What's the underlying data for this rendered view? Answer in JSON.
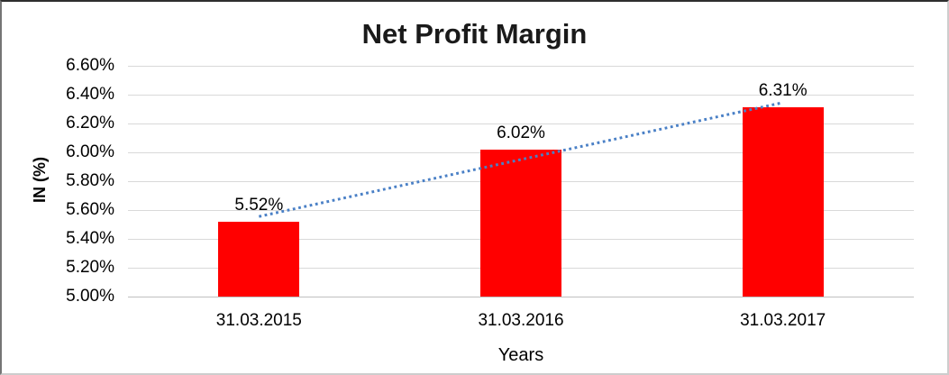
{
  "chart_data": {
    "type": "bar",
    "title": "Net Profit Margin",
    "xlabel": "Years",
    "ylabel": "IN (%)",
    "categories": [
      "31.03.2015",
      "31.03.2016",
      "31.03.2017"
    ],
    "values": [
      5.52,
      6.02,
      6.31
    ],
    "data_labels": [
      "5.52%",
      "6.02%",
      "6.31%"
    ],
    "ylim": [
      5.0,
      6.6
    ],
    "ytick_step": 0.2,
    "ytick_labels": [
      "5.00%",
      "5.20%",
      "5.40%",
      "5.60%",
      "5.80%",
      "6.00%",
      "6.20%",
      "6.40%",
      "6.60%"
    ],
    "grid": true,
    "legend": "none",
    "colors": {
      "bar": "#ff0000",
      "trendline": "#4a80c6",
      "gridline": "#d9d9d9",
      "axis_line": "#bfbfbf",
      "text": "#000000"
    },
    "trendline": {
      "type": "linear",
      "style": "dotted"
    }
  }
}
